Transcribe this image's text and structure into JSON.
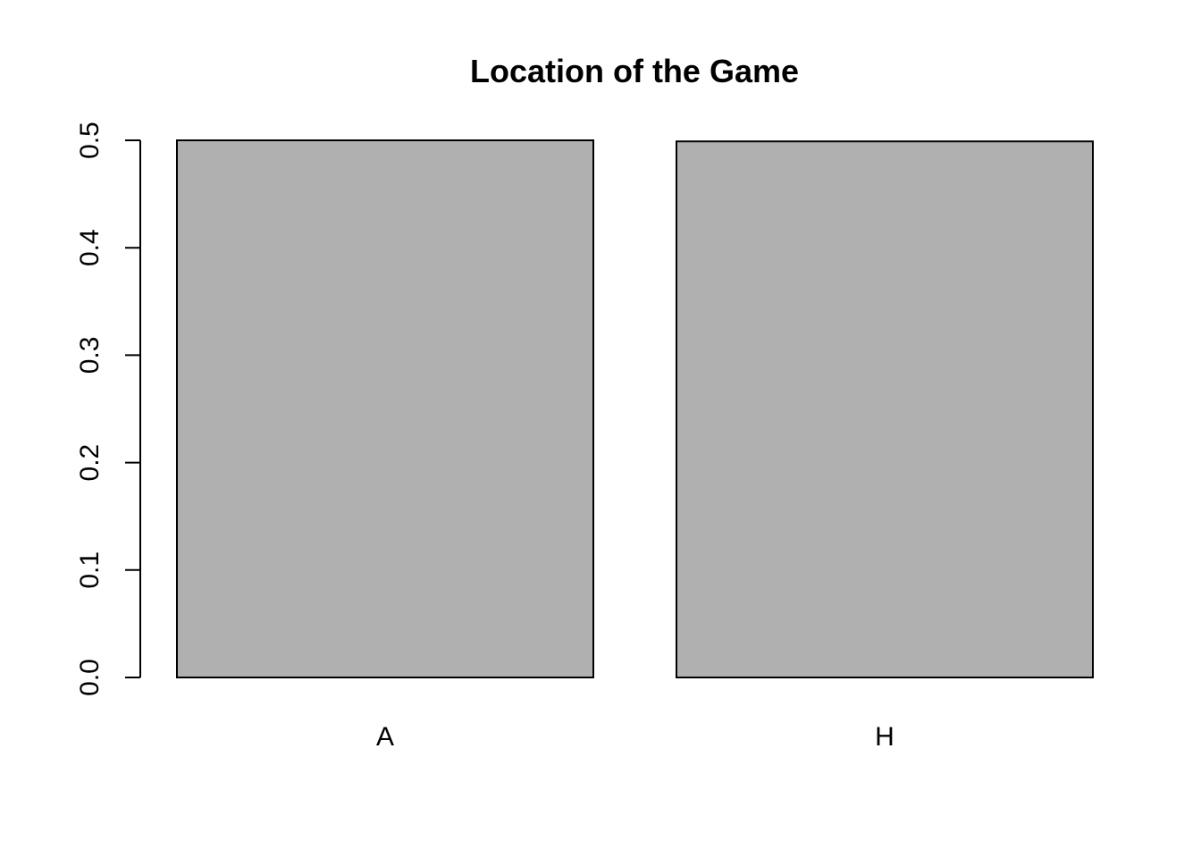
{
  "chart_data": {
    "type": "bar",
    "title": "Location of the Game",
    "xlabel": "",
    "ylabel": "",
    "categories": [
      "A",
      "H"
    ],
    "values": [
      0.5,
      0.499
    ],
    "ylim": [
      0,
      0.5
    ],
    "yticks": [
      "0.0",
      "0.1",
      "0.2",
      "0.3",
      "0.4",
      "0.5"
    ],
    "bar_color": "#b0b0b0",
    "grid": false,
    "legend": "none"
  }
}
